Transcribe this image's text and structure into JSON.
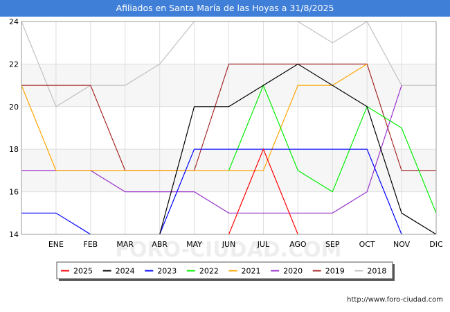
{
  "chart_data": {
    "type": "line",
    "title": "Afiliados en Santa María de las Hoyas a 31/8/2025",
    "categories": [
      "",
      "ENE",
      "FEB",
      "MAR",
      "ABR",
      "MAY",
      "JUN",
      "JUL",
      "AGO",
      "SEP",
      "OCT",
      "NOV",
      "DIC"
    ],
    "ylim": [
      14,
      24
    ],
    "yticks": [
      14,
      16,
      18,
      20,
      22,
      24
    ],
    "grid": true,
    "legend_position": "bottom",
    "watermark": "FORO-CIUDAD.COM",
    "source": "http://www.foro-ciudad.com",
    "series": [
      {
        "name": "2025",
        "color": "#ff0000",
        "values": [
          null,
          null,
          null,
          null,
          null,
          null,
          14,
          18,
          14,
          null,
          null,
          null,
          null
        ]
      },
      {
        "name": "2024",
        "color": "#000000",
        "values": [
          null,
          null,
          null,
          null,
          14,
          20,
          20,
          21,
          22,
          21,
          20,
          15,
          14
        ]
      },
      {
        "name": "2023",
        "color": "#0000ff",
        "values": [
          15,
          15,
          14,
          null,
          14,
          18,
          18,
          18,
          18,
          18,
          18,
          14,
          null
        ]
      },
      {
        "name": "2022",
        "color": "#00ee00",
        "values": [
          null,
          null,
          null,
          null,
          null,
          null,
          17,
          21,
          17,
          16,
          20,
          19,
          15
        ]
      },
      {
        "name": "2021",
        "color": "#ffa500",
        "values": [
          21,
          17,
          17,
          17,
          17,
          17,
          17,
          17,
          21,
          21,
          22,
          null,
          null
        ]
      },
      {
        "name": "2020",
        "color": "#9932cc",
        "values": [
          17,
          17,
          17,
          16,
          16,
          16,
          15,
          15,
          15,
          15,
          16,
          21,
          null
        ]
      },
      {
        "name": "2019",
        "color": "#a52a2a",
        "values": [
          21,
          21,
          21,
          17,
          17,
          17,
          22,
          22,
          22,
          22,
          22,
          17,
          17
        ]
      },
      {
        "name": "2018",
        "color": "#c0c0c0",
        "values": [
          24,
          20,
          21,
          21,
          22,
          24,
          24,
          24,
          24,
          23,
          24,
          21,
          21
        ]
      }
    ]
  }
}
